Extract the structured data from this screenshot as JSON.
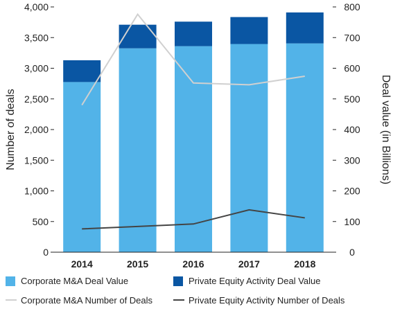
{
  "chart_data": {
    "type": "bar",
    "categories": [
      "2014",
      "2015",
      "2016",
      "2017",
      "2018"
    ],
    "series": [
      {
        "name": "Corporate M&A Deal Value",
        "kind": "stacked-bar",
        "axis": "right",
        "color": "#52b3e8",
        "values": [
          555,
          665,
          672,
          679,
          681
        ]
      },
      {
        "name": "Private Equity Activity Deal Value",
        "kind": "stacked-bar",
        "axis": "right",
        "color": "#0a56a3",
        "values": [
          71,
          77,
          80,
          88,
          101
        ]
      },
      {
        "name": "Corporate M&A Number of Deals",
        "kind": "line",
        "axis": "left",
        "color": "#d0d0d0",
        "values": [
          2400,
          3880,
          2760,
          2730,
          2870
        ]
      },
      {
        "name": "Private Equity Activity Number of Deals",
        "kind": "line",
        "axis": "left",
        "color": "#444444",
        "values": [
          380,
          420,
          460,
          690,
          560
        ]
      }
    ],
    "yleft": {
      "label": "Number of deals",
      "ylim": [
        0,
        4000
      ],
      "ticks": [
        0,
        500,
        1000,
        1500,
        2000,
        2500,
        3000,
        3500,
        4000
      ],
      "tick_labels": [
        "0",
        "500",
        "1,000",
        "1,500",
        "2,000",
        "2,500",
        "3,000",
        "3,500",
        "4,000"
      ]
    },
    "yright": {
      "label": "Deal value (in Billions)",
      "ylim": [
        0,
        800
      ],
      "ticks": [
        0,
        100,
        200,
        300,
        400,
        500,
        600,
        700,
        800
      ],
      "tick_labels": [
        "0",
        "100",
        "200",
        "300",
        "400",
        "500",
        "600",
        "700",
        "800"
      ]
    },
    "grid": false,
    "legend_position": "bottom"
  }
}
